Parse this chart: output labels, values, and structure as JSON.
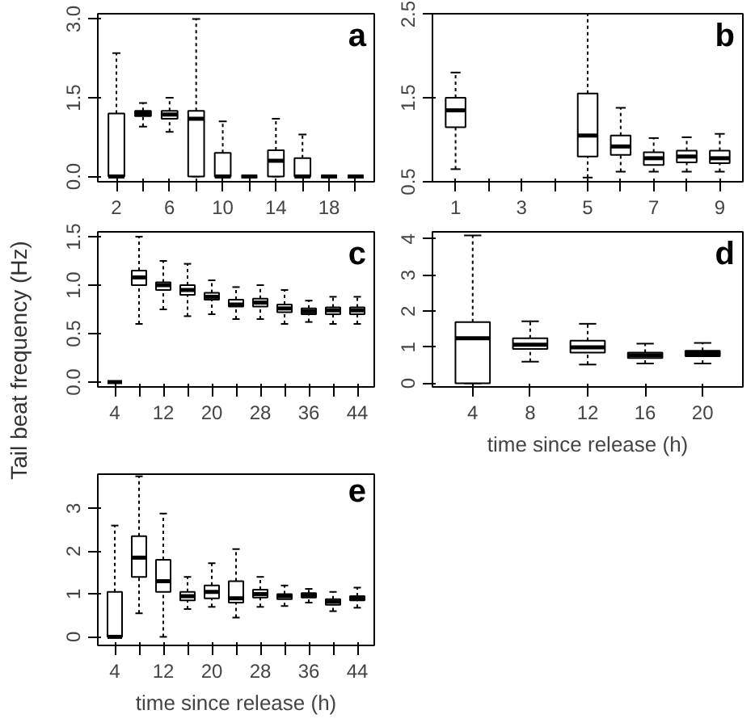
{
  "chart_data": [
    {
      "type": "box",
      "title": "a",
      "categories": [
        "2",
        null,
        "6",
        null,
        "10",
        null,
        "14",
        null,
        "18",
        null
      ],
      "ylim": [
        -0.1,
        3.1
      ],
      "yticks": [
        {
          "value": 0,
          "label": "0.0"
        },
        {
          "value": 1.5,
          "label": "1.5"
        },
        {
          "value": 3,
          "label": "3.0"
        }
      ],
      "boxes": [
        {
          "low": 0,
          "q1": 0,
          "median": 0,
          "q3": 1.2,
          "high": 2.35
        },
        {
          "low": 0.95,
          "q1": 1.15,
          "median": 1.2,
          "q3": 1.25,
          "high": 1.4
        },
        {
          "low": 0.85,
          "q1": 1.1,
          "median": 1.18,
          "q3": 1.25,
          "high": 1.5
        },
        {
          "low": 0,
          "q1": 0,
          "median": 1.1,
          "q3": 1.25,
          "high": 3.0
        },
        {
          "low": 0,
          "q1": 0,
          "median": 0,
          "q3": 0.45,
          "high": 1.05
        },
        {
          "low": 0,
          "q1": 0,
          "median": 0,
          "q3": 0,
          "high": 0
        },
        {
          "low": 0,
          "q1": 0,
          "median": 0.3,
          "q3": 0.5,
          "high": 1.1
        },
        {
          "low": 0,
          "q1": 0,
          "median": 0,
          "q3": 0.35,
          "high": 0.8
        },
        {
          "low": 0,
          "q1": 0,
          "median": 0,
          "q3": 0,
          "high": 0
        },
        {
          "low": 0,
          "q1": 0,
          "median": 0,
          "q3": 0,
          "high": 0
        }
      ]
    },
    {
      "type": "box",
      "title": "b",
      "categories": [
        "1",
        null,
        "3",
        null,
        "5",
        null,
        "7",
        null,
        "9"
      ],
      "ylim": [
        0.5,
        2.5
      ],
      "yticks": [
        0.5,
        1.5,
        2.5
      ],
      "boxes": [
        {
          "low": 0.65,
          "q1": 1.15,
          "median": 1.35,
          "q3": 1.5,
          "high": 1.8
        },
        null,
        null,
        null,
        {
          "low": 0.55,
          "q1": 0.8,
          "median": 1.05,
          "q3": 1.55,
          "high": 2.5
        },
        {
          "low": 0.62,
          "q1": 0.82,
          "median": 0.92,
          "q3": 1.05,
          "high": 1.38
        },
        {
          "low": 0.62,
          "q1": 0.7,
          "median": 0.78,
          "q3": 0.85,
          "high": 1.02
        },
        {
          "low": 0.62,
          "q1": 0.73,
          "median": 0.8,
          "q3": 0.87,
          "high": 1.03
        },
        {
          "low": 0.62,
          "q1": 0.72,
          "median": 0.78,
          "q3": 0.87,
          "high": 1.07
        }
      ]
    },
    {
      "type": "box",
      "title": "c",
      "ylabel": "Tail beat frequency (Hz)",
      "categories": [
        "4",
        null,
        "12",
        null,
        "20",
        null,
        "28",
        null,
        "36",
        null,
        "44"
      ],
      "ylim": [
        -0.05,
        1.55
      ],
      "yticks": [
        {
          "value": 0,
          "label": "0.0"
        },
        {
          "value": 0.5,
          "label": "0.5"
        },
        {
          "value": 1,
          "label": "1.0"
        },
        {
          "value": 1.5,
          "label": "1.5"
        }
      ],
      "boxes": [
        {
          "low": 0,
          "q1": 0,
          "median": 0,
          "q3": 0,
          "high": 0
        },
        {
          "low": 0.6,
          "q1": 1.0,
          "median": 1.08,
          "q3": 1.15,
          "high": 1.5
        },
        {
          "low": 0.75,
          "q1": 0.95,
          "median": 1.0,
          "q3": 1.03,
          "high": 1.25
        },
        {
          "low": 0.68,
          "q1": 0.9,
          "median": 0.95,
          "q3": 1.0,
          "high": 1.22
        },
        {
          "low": 0.7,
          "q1": 0.85,
          "median": 0.88,
          "q3": 0.92,
          "high": 1.05
        },
        {
          "low": 0.65,
          "q1": 0.78,
          "median": 0.8,
          "q3": 0.85,
          "high": 0.98
        },
        {
          "low": 0.65,
          "q1": 0.78,
          "median": 0.82,
          "q3": 0.86,
          "high": 1.0
        },
        {
          "low": 0.6,
          "q1": 0.72,
          "median": 0.76,
          "q3": 0.8,
          "high": 0.95
        },
        {
          "low": 0.62,
          "q1": 0.7,
          "median": 0.73,
          "q3": 0.76,
          "high": 0.84
        },
        {
          "low": 0.6,
          "q1": 0.7,
          "median": 0.74,
          "q3": 0.77,
          "high": 0.88
        },
        {
          "low": 0.6,
          "q1": 0.7,
          "median": 0.74,
          "q3": 0.77,
          "high": 0.88
        }
      ]
    },
    {
      "type": "box",
      "title": "d",
      "xlabel": "time since release (h)",
      "categories": [
        "4",
        "8",
        "12",
        "16",
        "20"
      ],
      "ylim": [
        -0.1,
        4.2
      ],
      "yticks": [
        0,
        1,
        2,
        3,
        4
      ],
      "boxes": [
        {
          "low": 0,
          "q1": 0,
          "median": 1.25,
          "q3": 1.7,
          "high": 4.1
        },
        {
          "low": 0.6,
          "q1": 0.95,
          "median": 1.07,
          "q3": 1.25,
          "high": 1.72
        },
        {
          "low": 0.52,
          "q1": 0.85,
          "median": 1.0,
          "q3": 1.18,
          "high": 1.65
        },
        {
          "low": 0.55,
          "q1": 0.7,
          "median": 0.78,
          "q3": 0.85,
          "high": 1.1
        },
        {
          "low": 0.55,
          "q1": 0.75,
          "median": 0.83,
          "q3": 0.9,
          "high": 1.12
        }
      ]
    },
    {
      "type": "box",
      "title": "e",
      "xlabel": "time since release (h)",
      "categories": [
        "4",
        null,
        "12",
        null,
        "20",
        null,
        "28",
        null,
        "36",
        null,
        "44"
      ],
      "ylim": [
        -0.2,
        3.8
      ],
      "yticks": [
        0,
        1,
        2,
        3
      ],
      "boxes": [
        {
          "low": 0,
          "q1": 0,
          "median": 0,
          "q3": 1.05,
          "high": 2.6
        },
        {
          "low": 0.55,
          "q1": 1.4,
          "median": 1.85,
          "q3": 2.35,
          "high": 3.75
        },
        {
          "low": 0,
          "q1": 1.05,
          "median": 1.3,
          "q3": 1.8,
          "high": 2.88
        },
        {
          "low": 0.65,
          "q1": 0.85,
          "median": 0.95,
          "q3": 1.05,
          "high": 1.4
        },
        {
          "low": 0.7,
          "q1": 0.9,
          "median": 1.05,
          "q3": 1.2,
          "high": 1.72
        },
        {
          "low": 0.45,
          "q1": 0.8,
          "median": 0.9,
          "q3": 1.3,
          "high": 2.05
        },
        {
          "low": 0.7,
          "q1": 0.92,
          "median": 1.0,
          "q3": 1.1,
          "high": 1.4
        },
        {
          "low": 0.72,
          "q1": 0.88,
          "median": 0.95,
          "q3": 1.0,
          "high": 1.2
        },
        {
          "low": 0.8,
          "q1": 0.92,
          "median": 0.98,
          "q3": 1.02,
          "high": 1.12
        },
        {
          "low": 0.6,
          "q1": 0.75,
          "median": 0.82,
          "q3": 0.88,
          "high": 1.05
        },
        {
          "low": 0.68,
          "q1": 0.85,
          "median": 0.9,
          "q3": 0.95,
          "high": 1.15
        }
      ]
    }
  ]
}
